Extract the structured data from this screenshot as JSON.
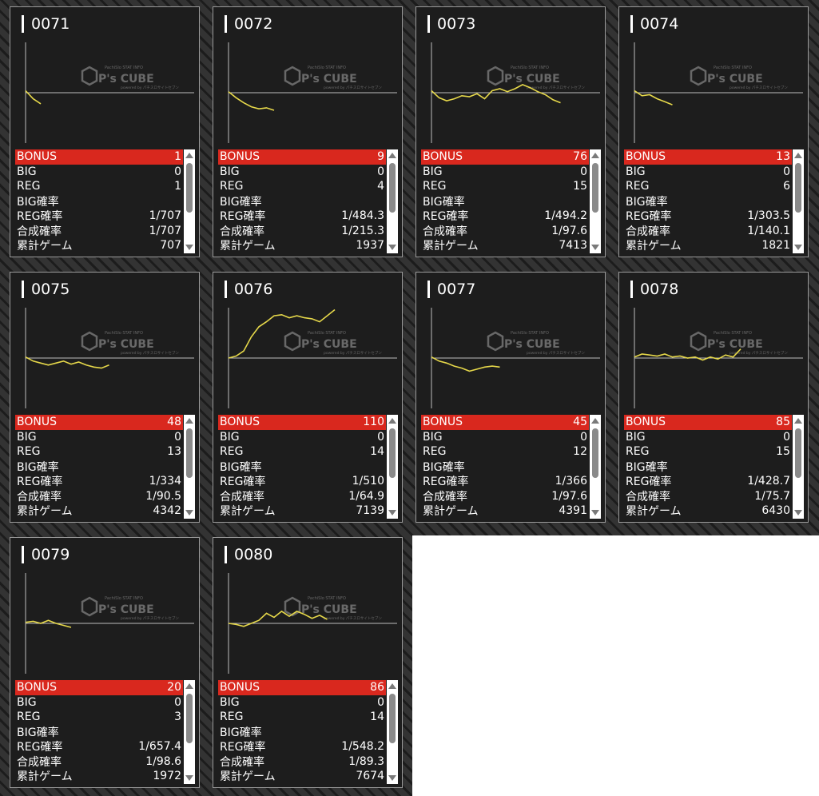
{
  "watermark": {
    "brand": "P's CUBE",
    "top_line": "PachiSlo STAT INFO",
    "bottom_line": "powered by パチスロサイトセブン"
  },
  "colors": {
    "bonus_bg": "#d9281e",
    "graph_line": "#e6d84a",
    "panel_bg": "#1d1d1d"
  },
  "icons": {
    "scroll_up": "triangle-up-icon",
    "scroll_down": "triangle-down-icon"
  },
  "labels": {
    "bonus": "BONUS",
    "big": "BIG",
    "reg": "REG",
    "big_rate": "BIG確率",
    "reg_rate": "REG確率",
    "combined_rate": "合成確率",
    "total_games": "累計ゲーム"
  },
  "machines": [
    {
      "number": "0071",
      "bonus": "1",
      "big": "0",
      "reg": "1",
      "big_rate": "",
      "reg_rate": "1/707",
      "combined_rate": "1/707",
      "total_games": "707"
    },
    {
      "number": "0072",
      "bonus": "9",
      "big": "0",
      "reg": "4",
      "big_rate": "",
      "reg_rate": "1/484.3",
      "combined_rate": "1/215.3",
      "total_games": "1937"
    },
    {
      "number": "0073",
      "bonus": "76",
      "big": "0",
      "reg": "15",
      "big_rate": "",
      "reg_rate": "1/494.2",
      "combined_rate": "1/97.6",
      "total_games": "7413"
    },
    {
      "number": "0074",
      "bonus": "13",
      "big": "0",
      "reg": "6",
      "big_rate": "",
      "reg_rate": "1/303.5",
      "combined_rate": "1/140.1",
      "total_games": "1821"
    },
    {
      "number": "0075",
      "bonus": "48",
      "big": "0",
      "reg": "13",
      "big_rate": "",
      "reg_rate": "1/334",
      "combined_rate": "1/90.5",
      "total_games": "4342"
    },
    {
      "number": "0076",
      "bonus": "110",
      "big": "0",
      "reg": "14",
      "big_rate": "",
      "reg_rate": "1/510",
      "combined_rate": "1/64.9",
      "total_games": "7139"
    },
    {
      "number": "0077",
      "bonus": "45",
      "big": "0",
      "reg": "12",
      "big_rate": "",
      "reg_rate": "1/366",
      "combined_rate": "1/97.6",
      "total_games": "4391"
    },
    {
      "number": "0078",
      "bonus": "85",
      "big": "0",
      "reg": "15",
      "big_rate": "",
      "reg_rate": "1/428.7",
      "combined_rate": "1/75.7",
      "total_games": "6430"
    },
    {
      "number": "0079",
      "bonus": "20",
      "big": "0",
      "reg": "3",
      "big_rate": "",
      "reg_rate": "1/657.4",
      "combined_rate": "1/98.6",
      "total_games": "1972"
    },
    {
      "number": "0080",
      "bonus": "86",
      "big": "0",
      "reg": "14",
      "big_rate": "",
      "reg_rate": "1/548.2",
      "combined_rate": "1/89.3",
      "total_games": "7674"
    }
  ],
  "chart_data": [
    {
      "type": "line",
      "machine": "0071",
      "y": [
        0.04,
        -0.12,
        -0.22
      ],
      "ylim": [
        -1,
        1
      ]
    },
    {
      "type": "line",
      "machine": "0072",
      "y": [
        0.02,
        -0.1,
        -0.2,
        -0.28,
        -0.32,
        -0.3,
        -0.35
      ],
      "ylim": [
        -1,
        1
      ]
    },
    {
      "type": "line",
      "machine": "0073",
      "y": [
        0.04,
        -0.1,
        -0.16,
        -0.12,
        -0.06,
        -0.08,
        -0.02,
        -0.12,
        0.04,
        0.08,
        0.02,
        0.08,
        0.16,
        0.1,
        0.02,
        -0.04,
        -0.14,
        -0.2
      ],
      "ylim": [
        -1,
        1
      ]
    },
    {
      "type": "line",
      "machine": "0074",
      "y": [
        0.04,
        -0.06,
        -0.04,
        -0.12,
        -0.18,
        -0.24
      ],
      "ylim": [
        -1,
        1
      ]
    },
    {
      "type": "line",
      "machine": "0075",
      "y": [
        0.02,
        -0.06,
        -0.1,
        -0.14,
        -0.1,
        -0.06,
        -0.12,
        -0.08,
        -0.14,
        -0.18,
        -0.2,
        -0.14
      ],
      "ylim": [
        -1,
        1
      ]
    },
    {
      "type": "line",
      "machine": "0076",
      "y": [
        0.0,
        0.04,
        0.14,
        0.42,
        0.62,
        0.72,
        0.84,
        0.86,
        0.8,
        0.84,
        0.8,
        0.78,
        0.72,
        0.84,
        0.96
      ],
      "ylim": [
        -1,
        1
      ]
    },
    {
      "type": "line",
      "machine": "0077",
      "y": [
        0.02,
        -0.06,
        -0.1,
        -0.16,
        -0.2,
        -0.26,
        -0.22,
        -0.18,
        -0.16,
        -0.18
      ],
      "ylim": [
        -1,
        1
      ]
    },
    {
      "type": "line",
      "machine": "0078",
      "y": [
        0.02,
        0.08,
        0.06,
        0.04,
        0.08,
        0.02,
        0.04,
        0.0,
        0.02,
        -0.04,
        0.02,
        -0.02,
        0.06,
        0.02,
        0.18
      ],
      "ylim": [
        -1,
        1
      ]
    },
    {
      "type": "line",
      "machine": "0079",
      "y": [
        0.02,
        0.04,
        0.0,
        0.06,
        0.0,
        -0.04,
        -0.08
      ],
      "ylim": [
        -1,
        1
      ]
    },
    {
      "type": "line",
      "machine": "0080",
      "y": [
        0.0,
        -0.02,
        -0.06,
        0.0,
        0.06,
        0.2,
        0.12,
        0.24,
        0.14,
        0.24,
        0.18,
        0.1,
        0.16,
        0.08
      ],
      "ylim": [
        -1,
        1
      ]
    }
  ]
}
